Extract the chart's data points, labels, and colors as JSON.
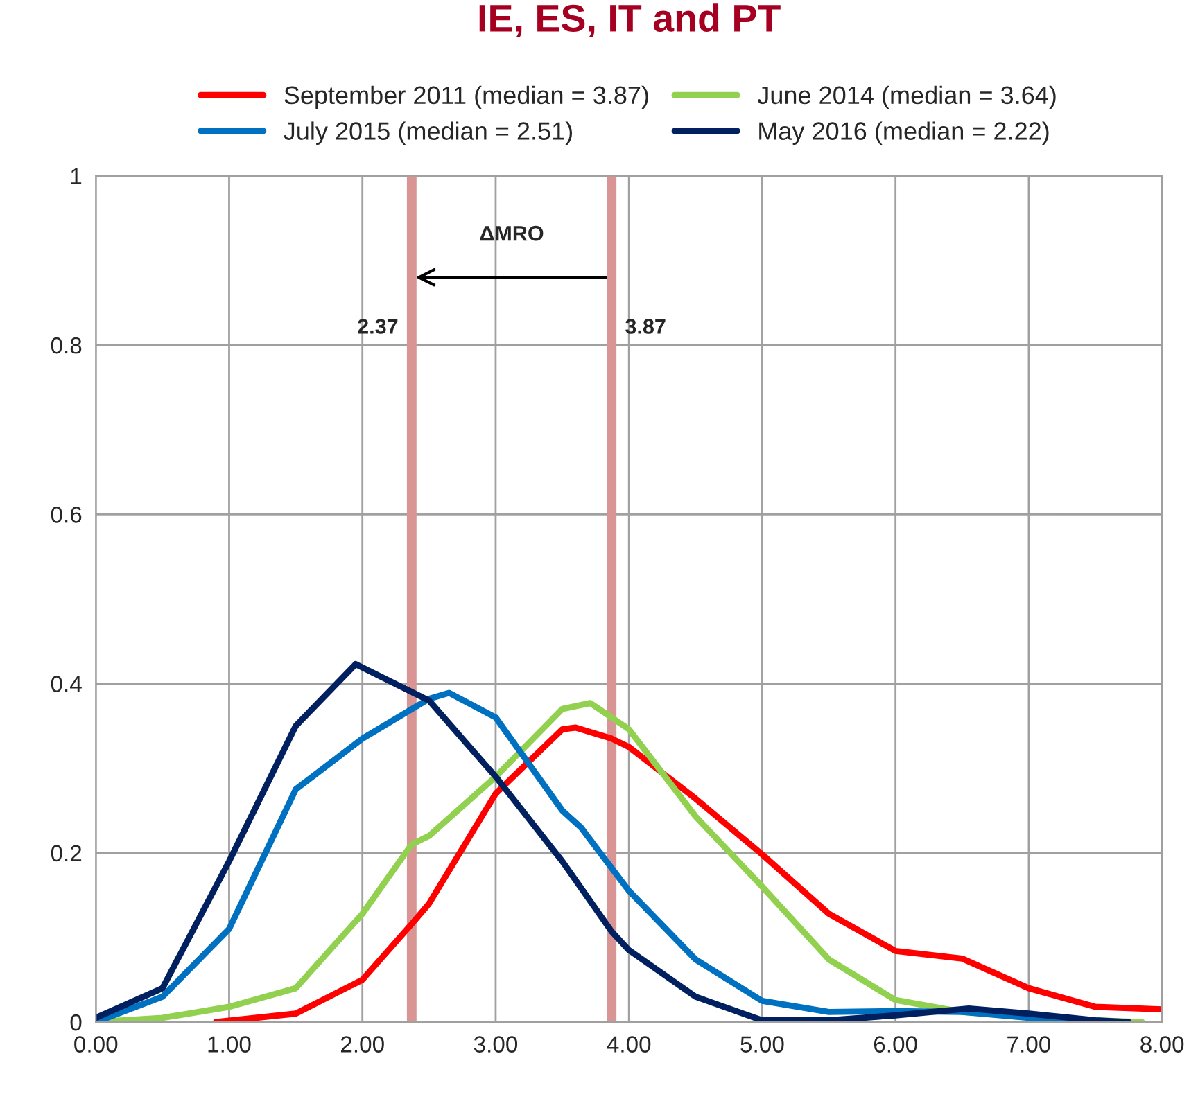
{
  "chart_data": {
    "type": "line",
    "title": "IE, ES, IT and PT",
    "xlim": [
      0,
      8
    ],
    "ylim": [
      0,
      1
    ],
    "xticks": [
      {
        "value": 0,
        "label": "0.00"
      },
      {
        "value": 1,
        "label": "1.00"
      },
      {
        "value": 2,
        "label": "2.00"
      },
      {
        "value": 3,
        "label": "3.00"
      },
      {
        "value": 4,
        "label": "4.00"
      },
      {
        "value": 5,
        "label": "5.00"
      },
      {
        "value": 6,
        "label": "6.00"
      },
      {
        "value": 7,
        "label": "7.00"
      },
      {
        "value": 8,
        "label": "8.00"
      }
    ],
    "yticks": [
      0,
      0.2,
      0.4,
      0.6,
      0.8,
      1
    ],
    "grid": true,
    "legend": "top",
    "line_style": "solid",
    "marker": "none",
    "series": [
      {
        "name": "September 2011 (median = 3.87)",
        "color": "#ff0000",
        "x": [
          0.9,
          1.5,
          2.0,
          2.37,
          2.5,
          3.0,
          3.5,
          3.6,
          3.87,
          4.0,
          4.5,
          5.0,
          5.5,
          6.0,
          6.5,
          7.0,
          7.5,
          8.0
        ],
        "values": [
          0,
          0.01,
          0.05,
          0.116,
          0.14,
          0.27,
          0.346,
          0.348,
          0.335,
          0.325,
          0.264,
          0.198,
          0.128,
          0.084,
          0.075,
          0.04,
          0.018,
          0.015
        ]
      },
      {
        "name": "June 2014 (median = 3.64)",
        "color": "#92d050",
        "x": [
          0,
          0.5,
          1.0,
          1.5,
          2.0,
          2.37,
          2.5,
          3.0,
          3.5,
          3.71,
          4.0,
          4.5,
          5.0,
          5.5,
          6.0,
          6.5,
          7.0,
          7.5,
          7.85
        ],
        "values": [
          0,
          0.005,
          0.018,
          0.04,
          0.128,
          0.21,
          0.22,
          0.29,
          0.37,
          0.377,
          0.346,
          0.243,
          0.16,
          0.074,
          0.026,
          0.012,
          0.006,
          0.002,
          0
        ]
      },
      {
        "name": "July 2015 (median = 2.51)",
        "color": "#0070c0",
        "x": [
          0,
          0.5,
          1.0,
          1.5,
          2.0,
          2.5,
          2.65,
          3.0,
          3.5,
          3.64,
          4.0,
          4.5,
          5.0,
          5.5,
          6.0,
          6.5,
          7.0,
          7.5
        ],
        "values": [
          0,
          0.03,
          0.11,
          0.275,
          0.335,
          0.382,
          0.389,
          0.36,
          0.25,
          0.23,
          0.155,
          0.074,
          0.025,
          0.012,
          0.013,
          0.012,
          0.005,
          0
        ]
      },
      {
        "name": "May 2016 (median = 2.22)",
        "color": "#002060",
        "x": [
          0,
          0.5,
          1.0,
          1.5,
          1.95,
          2.5,
          3.0,
          3.5,
          3.87,
          4.0,
          4.5,
          5.0,
          5.5,
          6.0,
          6.55,
          7.0,
          7.5,
          7.75
        ],
        "values": [
          0.005,
          0.04,
          0.19,
          0.35,
          0.423,
          0.38,
          0.29,
          0.19,
          0.107,
          0.085,
          0.03,
          0.002,
          0.002,
          0.008,
          0.016,
          0.01,
          0.002,
          0
        ]
      }
    ],
    "ref_lines": [
      {
        "axis": "x",
        "value": 2.37,
        "label": "2.37",
        "color": "#d99594"
      },
      {
        "axis": "x",
        "value": 3.87,
        "label": "3.87",
        "color": "#d99594"
      }
    ],
    "annotations": [
      "ΔMRO"
    ]
  }
}
